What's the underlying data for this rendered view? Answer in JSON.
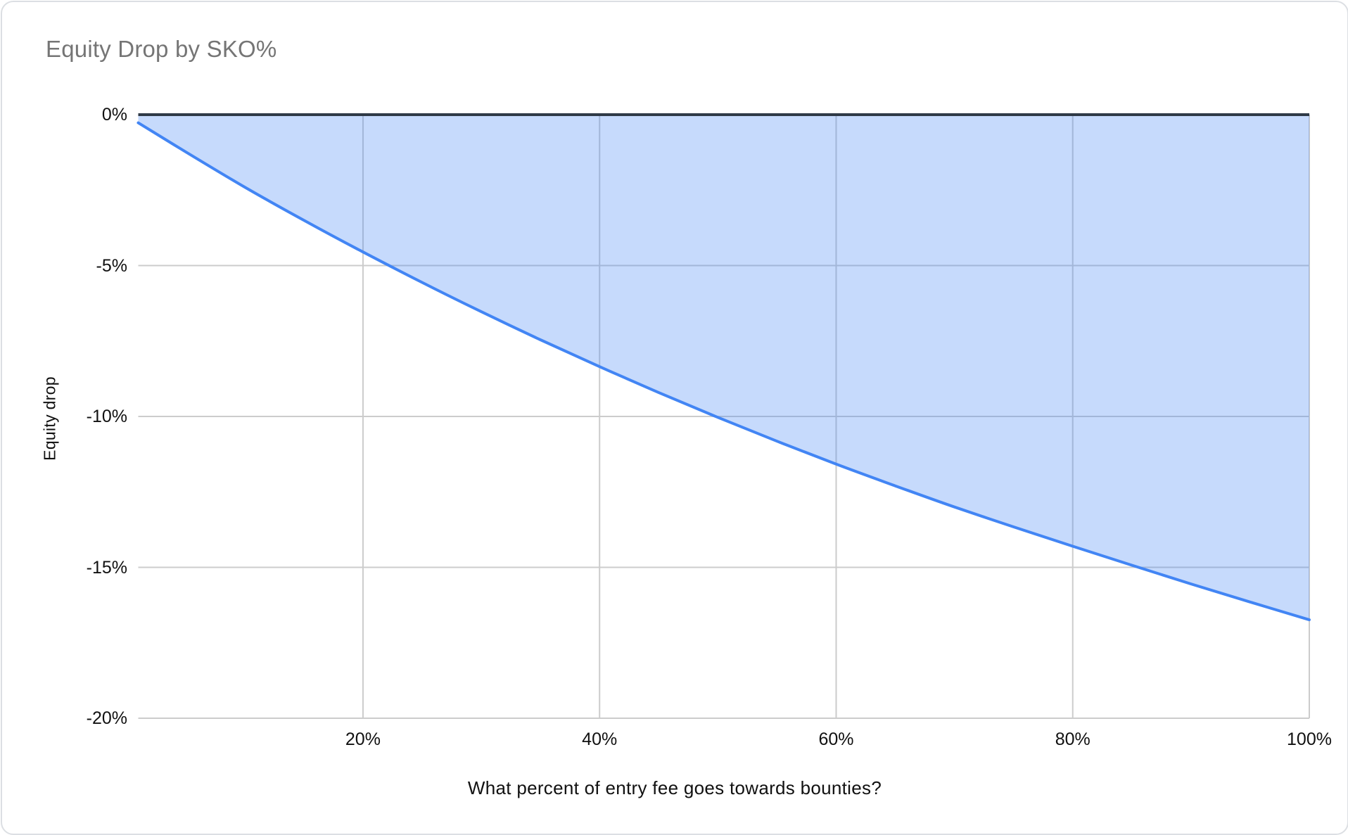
{
  "chart": {
    "title": "Equity Drop by SKO%",
    "y_axis_title": "Equity drop",
    "x_axis_title": "What percent of entry fee goes towards bounties?"
  },
  "chart_data": {
    "type": "area",
    "title": "Equity Drop by SKO%",
    "xlabel": "What percent of entry fee goes towards bounties?",
    "ylabel": "Equity drop",
    "xlim": [
      1,
      100
    ],
    "ylim": [
      -20,
      0
    ],
    "grid": true,
    "legend_position": "none",
    "x": [
      1,
      5,
      10,
      15,
      20,
      25,
      30,
      35,
      40,
      45,
      50,
      55,
      60,
      65,
      70,
      75,
      80,
      85,
      90,
      95,
      100
    ],
    "y": [
      -0.27,
      -1.23,
      -2.4,
      -3.5,
      -4.55,
      -5.56,
      -6.53,
      -7.46,
      -8.35,
      -9.21,
      -10.03,
      -10.82,
      -11.58,
      -12.3,
      -13.0,
      -13.66,
      -14.3,
      -14.93,
      -15.55,
      -16.15,
      -16.74
    ],
    "x_ticks": [
      {
        "value": 20,
        "label": "20%"
      },
      {
        "value": 40,
        "label": "40%"
      },
      {
        "value": 60,
        "label": "60%"
      },
      {
        "value": 80,
        "label": "80%"
      },
      {
        "value": 100,
        "label": "100%"
      }
    ],
    "y_ticks": [
      {
        "value": 0,
        "label": "0%"
      },
      {
        "value": -5,
        "label": "-5%"
      },
      {
        "value": -10,
        "label": "-10%"
      },
      {
        "value": -15,
        "label": "-15%"
      },
      {
        "value": -20,
        "label": "-20%"
      }
    ],
    "colors": {
      "line": "#4285f4",
      "fill": "#4285f4",
      "fill_opacity": 0.3,
      "gridline": "#cccccc",
      "baseline": "#2f3a47",
      "title_text": "#757575",
      "tick_text": "#111111"
    }
  }
}
